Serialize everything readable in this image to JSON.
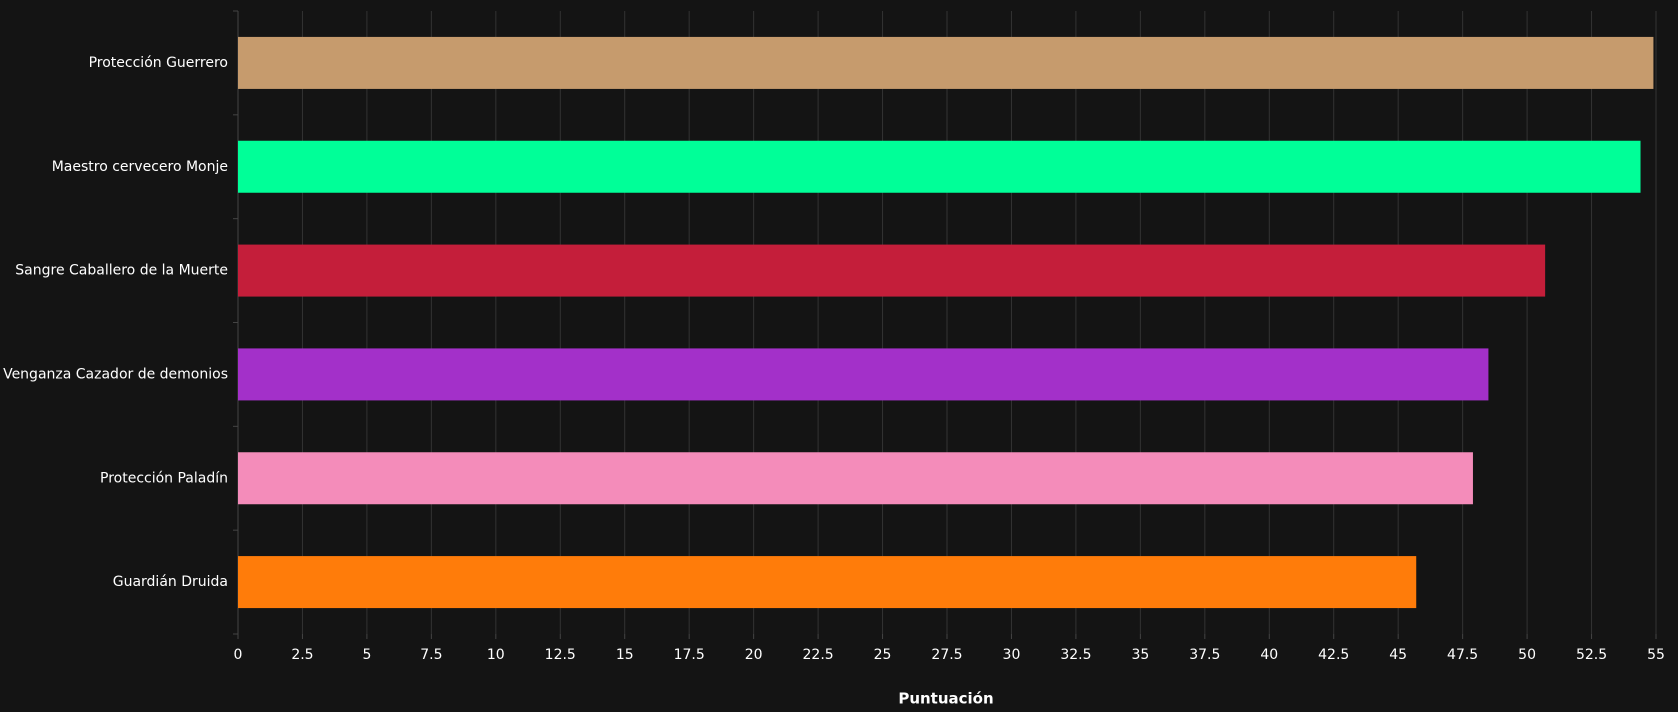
{
  "chart_data": {
    "type": "hbar",
    "x_label": "Puntuación",
    "categories": [
      "Protección Guerrero",
      "Maestro cervecero Monje",
      "Sangre Caballero de la Muerte",
      "Venganza Cazador de demonios",
      "Protección Paladín",
      "Guardián Druida"
    ],
    "values": [
      54.9,
      54.4,
      50.7,
      48.5,
      47.9,
      45.7
    ],
    "colors": [
      "#C69B6D",
      "#00FF98",
      "#C41E3A",
      "#A330C9",
      "#F48CBA",
      "#FF7C0A"
    ],
    "xlim": [
      0,
      55
    ],
    "xticks": [
      0,
      2.5,
      5,
      7.5,
      10,
      12.5,
      15,
      17.5,
      20,
      22.5,
      25,
      27.5,
      30,
      32.5,
      35,
      37.5,
      40,
      42.5,
      45,
      47.5,
      50,
      52.5,
      55
    ],
    "grid": true
  }
}
